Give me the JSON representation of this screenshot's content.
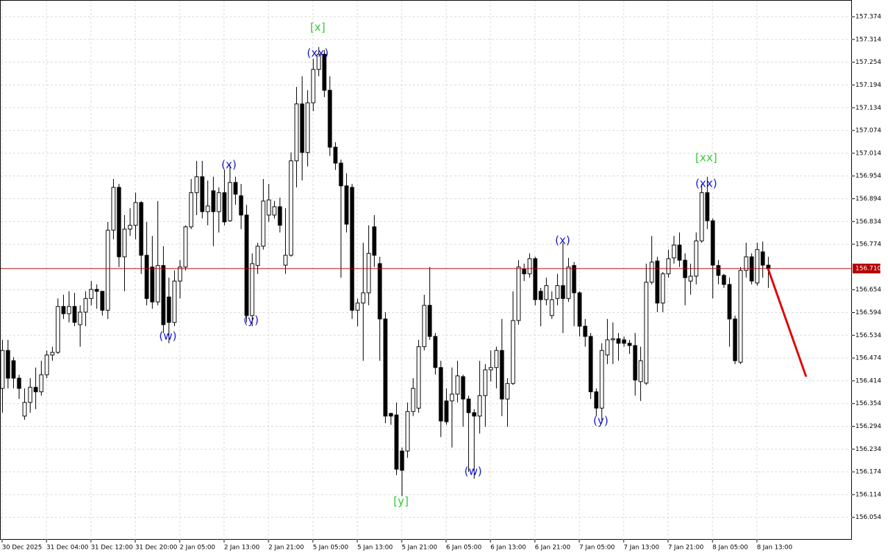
{
  "chart_data": {
    "type": "candlestick",
    "up_color": "#ffffff",
    "down_color": "#000000",
    "line_color": "#000000",
    "grid": true,
    "ylim": [
      155.995,
      157.418
    ],
    "yticks": [
      157.374,
      157.314,
      157.254,
      157.194,
      157.134,
      157.074,
      157.014,
      156.954,
      156.894,
      156.834,
      156.774,
      156.654,
      156.594,
      156.534,
      156.474,
      156.414,
      156.354,
      156.294,
      156.234,
      156.174,
      156.114,
      156.054
    ],
    "current_price": {
      "value": 156.71,
      "label": "156.710",
      "color": "#b40000"
    },
    "categories": [
      "30 Dec 2025",
      null,
      null,
      null,
      null,
      null,
      null,
      null,
      "31 Dec 04:00",
      null,
      null,
      null,
      null,
      null,
      null,
      null,
      "31 Dec 12:00",
      null,
      null,
      null,
      null,
      null,
      null,
      null,
      "31 Dec 20:00",
      null,
      null,
      null,
      null,
      null,
      null,
      null,
      "2 Jan 05:00",
      null,
      null,
      null,
      null,
      null,
      null,
      null,
      "2 Jan 13:00",
      null,
      null,
      null,
      null,
      null,
      null,
      null,
      "2 Jan 21:00",
      null,
      null,
      null,
      null,
      null,
      null,
      null,
      "5 Jan 05:00",
      null,
      null,
      null,
      null,
      null,
      null,
      null,
      "5 Jan 13:00",
      null,
      null,
      null,
      null,
      null,
      null,
      null,
      "5 Jan 21:00",
      null,
      null,
      null,
      null,
      null,
      null,
      null,
      "6 Jan 05:00",
      null,
      null,
      null,
      null,
      null,
      null,
      null,
      "6 Jan 13:00",
      null,
      null,
      null,
      null,
      null,
      null,
      null,
      "6 Jan 21:00",
      null,
      null,
      null,
      null,
      null,
      null,
      null,
      "7 Jan 05:00",
      null,
      null,
      null,
      null,
      null,
      null,
      null,
      "7 Jan 13:00",
      null,
      null,
      null,
      null,
      null,
      null,
      null,
      "7 Jan 21:00",
      null,
      null,
      null,
      null,
      null,
      null,
      null,
      "8 Jan 05:00",
      null,
      null,
      null,
      null,
      null,
      null,
      null,
      "8 Jan 13:00",
      null,
      null
    ],
    "ohlc": [
      [
        156.394,
        156.522,
        156.33,
        156.494
      ],
      [
        156.494,
        156.522,
        156.394,
        156.421
      ],
      [
        156.467,
        156.476,
        156.394,
        156.421
      ],
      [
        156.421,
        156.43,
        156.366,
        156.394
      ],
      [
        156.321,
        156.394,
        156.311,
        156.357
      ],
      [
        156.357,
        156.421,
        156.33,
        156.397
      ],
      [
        156.397,
        156.449,
        156.339,
        156.385
      ],
      [
        156.385,
        156.467,
        156.375,
        156.43
      ],
      [
        156.43,
        156.494,
        156.421,
        156.482
      ],
      [
        156.482,
        156.504,
        156.467,
        156.489
      ],
      [
        156.489,
        156.631,
        156.485,
        156.61
      ],
      [
        156.61,
        156.641,
        156.577,
        156.591
      ],
      [
        156.591,
        156.65,
        156.568,
        156.61
      ],
      [
        156.61,
        156.646,
        156.558,
        156.568
      ],
      [
        156.562,
        156.613,
        156.504,
        156.595
      ],
      [
        156.595,
        156.65,
        156.558,
        156.631
      ],
      [
        156.631,
        156.677,
        156.613,
        156.655
      ],
      [
        156.655,
        156.668,
        156.604,
        156.65
      ],
      [
        156.65,
        156.65,
        156.586,
        156.6
      ],
      [
        156.6,
        156.833,
        156.577,
        156.811
      ],
      [
        156.811,
        156.946,
        156.787,
        156.924
      ],
      [
        156.924,
        156.933,
        156.714,
        156.741
      ],
      [
        156.741,
        156.851,
        156.65,
        156.814
      ],
      [
        156.814,
        156.869,
        156.796,
        156.824
      ],
      [
        156.824,
        156.91,
        156.787,
        156.884
      ],
      [
        156.884,
        156.888,
        156.696,
        156.745
      ],
      [
        156.745,
        156.833,
        156.613,
        156.631
      ],
      [
        156.714,
        156.796,
        156.604,
        156.622
      ],
      [
        156.622,
        156.888,
        156.613,
        156.718
      ],
      [
        156.718,
        156.769,
        156.54,
        156.562
      ],
      [
        156.635,
        156.686,
        156.513,
        156.568
      ],
      [
        156.568,
        156.705,
        156.558,
        156.677
      ],
      [
        156.677,
        156.732,
        156.631,
        156.714
      ],
      [
        156.714,
        156.824,
        156.705,
        156.82
      ],
      [
        156.82,
        156.946,
        156.814,
        156.91
      ],
      [
        156.91,
        156.994,
        156.851,
        156.952
      ],
      [
        156.952,
        156.994,
        156.842,
        156.86
      ],
      [
        156.86,
        156.942,
        156.824,
        156.875
      ],
      [
        156.915,
        156.952,
        156.769,
        156.86
      ],
      [
        156.86,
        156.924,
        156.805,
        156.91
      ],
      [
        156.91,
        156.97,
        156.824,
        156.833
      ],
      [
        156.836,
        156.983,
        156.833,
        156.937
      ],
      [
        156.937,
        156.952,
        156.878,
        156.906
      ],
      [
        156.902,
        156.933,
        156.814,
        156.851
      ],
      [
        156.851,
        156.878,
        156.568,
        156.586
      ],
      [
        156.586,
        156.75,
        156.558,
        156.723
      ],
      [
        156.718,
        156.778,
        156.696,
        156.769
      ],
      [
        156.769,
        156.946,
        156.76,
        156.888
      ],
      [
        156.851,
        156.933,
        156.833,
        156.891
      ],
      [
        156.851,
        156.888,
        156.842,
        156.873
      ],
      [
        156.873,
        156.897,
        156.805,
        156.824
      ],
      [
        156.719,
        156.869,
        156.696,
        156.745
      ],
      [
        156.745,
        157.016,
        156.741,
        156.994
      ],
      [
        156.994,
        157.189,
        156.924,
        157.144
      ],
      [
        157.144,
        157.217,
        156.942,
        157.016
      ],
      [
        157.016,
        157.18,
        156.979,
        157.147
      ],
      [
        157.147,
        157.263,
        157.125,
        157.235
      ],
      [
        157.235,
        157.294,
        157.217,
        157.275
      ],
      [
        157.275,
        157.286,
        157.162,
        157.18
      ],
      [
        157.18,
        157.217,
        157.007,
        157.03
      ],
      [
        157.03,
        157.043,
        156.97,
        156.988
      ],
      [
        156.988,
        156.997,
        156.686,
        156.928
      ],
      [
        156.928,
        156.961,
        156.805,
        156.827
      ],
      [
        156.924,
        156.933,
        156.577,
        156.6
      ],
      [
        156.6,
        156.631,
        156.558,
        156.619
      ],
      [
        156.619,
        156.778,
        156.467,
        156.646
      ],
      [
        156.646,
        156.824,
        156.613,
        156.75
      ],
      [
        156.82,
        156.851,
        156.714,
        156.745
      ],
      [
        156.723,
        156.741,
        156.467,
        156.577
      ],
      [
        156.577,
        156.595,
        156.302,
        156.321
      ],
      [
        156.328,
        156.33,
        156.298,
        156.321
      ],
      [
        156.324,
        156.357,
        156.165,
        156.181
      ],
      [
        156.229,
        156.238,
        156.11,
        156.178
      ],
      [
        156.229,
        156.357,
        156.211,
        156.333
      ],
      [
        156.333,
        156.421,
        156.321,
        156.394
      ],
      [
        156.342,
        156.522,
        156.33,
        156.504
      ],
      [
        156.504,
        156.641,
        156.494,
        156.613
      ],
      [
        156.613,
        156.714,
        156.522,
        156.531
      ],
      [
        156.531,
        156.54,
        156.43,
        156.449
      ],
      [
        156.449,
        156.467,
        156.266,
        156.308
      ],
      [
        156.361,
        156.394,
        156.298,
        156.306
      ],
      [
        156.361,
        156.449,
        156.238,
        156.379
      ],
      [
        156.379,
        156.467,
        156.357,
        156.427
      ],
      [
        156.425,
        156.43,
        156.293,
        156.366
      ],
      [
        156.366,
        156.375,
        156.174,
        156.33
      ],
      [
        156.33,
        156.339,
        156.156,
        156.321
      ],
      [
        156.321,
        156.467,
        156.275,
        156.375
      ],
      [
        156.375,
        156.458,
        156.293,
        156.443
      ],
      [
        156.443,
        156.494,
        156.412,
        156.449
      ],
      [
        156.449,
        156.504,
        156.394,
        156.494
      ],
      [
        156.494,
        156.577,
        156.321,
        156.366
      ],
      [
        156.366,
        156.421,
        156.293,
        156.407
      ],
      [
        156.407,
        156.65,
        156.403,
        156.573
      ],
      [
        156.573,
        156.732,
        156.562,
        156.714
      ],
      [
        156.708,
        156.723,
        156.677,
        156.696
      ],
      [
        156.696,
        156.75,
        156.686,
        156.736
      ],
      [
        156.736,
        156.741,
        156.613,
        156.628
      ],
      [
        156.65,
        156.659,
        156.558,
        156.628
      ],
      [
        156.628,
        156.686,
        156.613,
        156.665
      ],
      [
        156.586,
        156.65,
        156.577,
        156.628
      ],
      [
        156.631,
        156.696,
        156.613,
        156.665
      ],
      [
        156.665,
        156.778,
        156.54,
        156.631
      ],
      [
        156.631,
        156.738,
        156.622,
        156.714
      ],
      [
        156.718,
        156.727,
        156.558,
        156.646
      ],
      [
        156.646,
        156.65,
        156.531,
        156.558
      ],
      [
        156.558,
        156.577,
        156.504,
        156.531
      ],
      [
        156.531,
        156.54,
        156.366,
        156.385
      ],
      [
        156.385,
        156.394,
        156.321,
        156.342
      ],
      [
        156.342,
        156.513,
        156.302,
        156.494
      ],
      [
        156.482,
        156.577,
        156.458,
        156.522
      ],
      [
        156.522,
        156.568,
        156.458,
        156.525
      ],
      [
        156.525,
        156.54,
        156.467,
        156.513
      ],
      [
        156.522,
        156.531,
        156.504,
        156.513
      ],
      [
        156.513,
        156.522,
        156.485,
        156.507
      ],
      [
        156.507,
        156.54,
        156.375,
        156.416
      ],
      [
        156.412,
        156.504,
        156.361,
        156.467
      ],
      [
        156.408,
        156.723,
        156.403,
        156.674
      ],
      [
        156.674,
        156.796,
        156.668,
        156.727
      ],
      [
        156.73,
        156.741,
        156.595,
        156.619
      ],
      [
        156.619,
        156.701,
        156.595,
        156.696
      ],
      [
        156.696,
        156.76,
        156.686,
        156.736
      ],
      [
        156.738,
        156.796,
        156.723,
        156.772
      ],
      [
        156.772,
        156.805,
        156.714,
        156.732
      ],
      [
        156.732,
        156.75,
        156.613,
        156.686
      ],
      [
        156.677,
        156.723,
        156.641,
        156.69
      ],
      [
        156.69,
        156.805,
        156.668,
        156.783
      ],
      [
        156.783,
        156.933,
        156.778,
        156.91
      ],
      [
        156.91,
        156.952,
        156.814,
        156.836
      ],
      [
        156.836,
        156.842,
        156.631,
        156.719
      ],
      [
        156.718,
        156.732,
        156.668,
        156.692
      ],
      [
        156.692,
        156.696,
        156.659,
        156.668
      ],
      [
        156.668,
        156.686,
        156.504,
        156.577
      ],
      [
        156.577,
        156.586,
        156.458,
        156.467
      ],
      [
        156.463,
        156.714,
        156.458,
        156.705
      ],
      [
        156.705,
        156.778,
        156.686,
        156.741
      ],
      [
        156.741,
        156.75,
        156.668,
        156.677
      ],
      [
        156.672,
        156.778,
        156.665,
        156.76
      ],
      [
        156.754,
        156.781,
        156.686,
        156.719
      ],
      [
        156.719,
        156.741,
        156.659,
        156.71
      ]
    ],
    "annotations": [
      {
        "text": "[x]",
        "color": "#3cc83c"
      },
      {
        "text": "(xx)",
        "color": "#1a1ad2"
      },
      {
        "text": "(x)",
        "color": "#1a1ad2"
      },
      {
        "text": "(w)",
        "color": "#1a1ad2"
      },
      {
        "text": "(y)",
        "color": "#1a1ad2"
      },
      {
        "text": "(x)",
        "color": "#1a1ad2"
      },
      {
        "text": "(y)",
        "color": "#1a1ad2"
      },
      {
        "text": "(w)",
        "color": "#1a1ad2"
      },
      {
        "text": "[y]",
        "color": "#3cc83c"
      },
      {
        "text": "[xx]",
        "color": "#3cc83c"
      },
      {
        "text": "(xx)",
        "color": "#1a1ad2"
      }
    ]
  }
}
